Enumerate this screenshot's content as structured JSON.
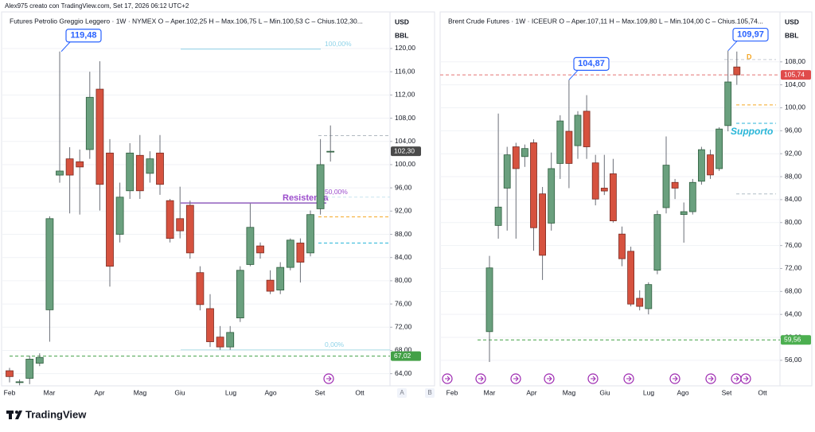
{
  "header": {
    "attribution": "Alex975 creato con TradingView.com, Set 17, 2026 06:12 UTC+2"
  },
  "footer": {
    "brand": "TradingView"
  },
  "chart_data": [
    {
      "type": "candlestick",
      "title": "Futures Petrolio Greggio Leggero · 1W · NYMEX  O – Aper.102,25  H – Max.106,75  L – Min.100,53  C – Chius.102,30...",
      "currency": "USD",
      "unit": "BBL",
      "scale_buttons": [
        "A",
        "B"
      ],
      "months": [
        "Feb",
        "Mar",
        "Apr",
        "Mag",
        "Giu",
        "Lug",
        "Ago",
        "Set",
        "Ott"
      ],
      "open": [
        64.5,
        62.5,
        63.2,
        65.8,
        75,
        98.2,
        101,
        100.5,
        102.6,
        113,
        102,
        88,
        95.5,
        101.6,
        98.5,
        102,
        93.8,
        90.7,
        93,
        81.4,
        75.2,
        70.3,
        68.6,
        73.6,
        82.8,
        86,
        80.1,
        78.4,
        82.3,
        86.5,
        84.8,
        92.4,
        102.25
      ],
      "high": [
        65,
        63,
        67.1,
        67.5,
        91.1,
        119.48,
        103,
        102.6,
        116,
        117.8,
        104.4,
        96.9,
        103.7,
        105.1,
        102.3,
        105.1,
        94.1,
        96.2,
        93.8,
        82.5,
        77.7,
        72.2,
        72.2,
        82.5,
        93.3,
        86.6,
        81.8,
        83.2,
        87.3,
        87.3,
        92.1,
        104.4,
        106.75
      ],
      "low": [
        62.5,
        62,
        62.2,
        65.3,
        69.5,
        96.9,
        91.6,
        91.4,
        101,
        92.1,
        79,
        86.6,
        94.1,
        94.1,
        96.9,
        94.8,
        86.6,
        87.3,
        83.8,
        74.9,
        68.6,
        68.1,
        68.1,
        72.9,
        82.5,
        83.8,
        77.7,
        77.7,
        81.8,
        79.7,
        84.2,
        91.4,
        100.53
      ],
      "close": [
        63.5,
        62.6,
        66.5,
        66.8,
        90.7,
        98.9,
        98.2,
        99.6,
        111.6,
        96.6,
        82.5,
        94.4,
        102,
        95.5,
        101,
        96.6,
        87.3,
        88.6,
        84.8,
        75.9,
        69.5,
        68.6,
        71.1,
        81.8,
        89.2,
        84.8,
        78.2,
        82.3,
        87,
        83.2,
        91.4,
        100,
        102.3
      ],
      "up_color": "#6aa07e",
      "down_color": "#d6523f",
      "ylim": [
        61.9,
        126.3
      ],
      "yticks": [
        {
          "value": 64,
          "label": "64,00"
        },
        {
          "value": 68,
          "label": "68,00"
        },
        {
          "value": 72,
          "label": "72,00"
        },
        {
          "value": 76,
          "label": "76,00"
        },
        {
          "value": 80,
          "label": "80,00"
        },
        {
          "value": 84,
          "label": "84,00"
        },
        {
          "value": 88,
          "label": "88,00"
        },
        {
          "value": 92,
          "label": "92,00"
        },
        {
          "value": 96,
          "label": "96,00"
        },
        {
          "value": 100,
          "label": "100,00"
        },
        {
          "value": 104,
          "label": "104,00"
        },
        {
          "value": 108,
          "label": "108,00"
        },
        {
          "value": 112,
          "label": "112,00"
        },
        {
          "value": 116,
          "label": "116,00"
        },
        {
          "value": 120,
          "label": "120,00"
        }
      ],
      "grid": true,
      "levels": [
        {
          "value": 119.9,
          "color": "#8fd3e8",
          "dash": false,
          "label": "100,00%"
        },
        {
          "value": 93.4,
          "color": "#7b3fb0",
          "dash": false
        },
        {
          "value": 94.4,
          "color": "#c8e6ef",
          "dash": true,
          "label": "50,00%"
        },
        {
          "value": 91,
          "color": "#f5a623",
          "dash": true
        },
        {
          "value": 86.5,
          "color": "#29b6d8",
          "dash": true
        },
        {
          "value": 68.1,
          "color": "#b2dfe8",
          "dash": false,
          "label": "0,00%"
        },
        {
          "value": 67.02,
          "color": "#43a047",
          "dash": true
        },
        {
          "value": 105,
          "color": "#b0b8c0",
          "dash": true
        }
      ],
      "badges": [
        {
          "value": 102.3,
          "label": "102,30",
          "color": "#4a4a4a"
        },
        {
          "value": 67.02,
          "label": "67,02",
          "color": "#43a047"
        }
      ],
      "callouts": [
        {
          "value": 119.48,
          "label": "119,48"
        }
      ],
      "notes": [
        {
          "value": 94.2,
          "text": "Resistenza",
          "color": "#9c4dcc"
        }
      ]
    },
    {
      "type": "candlestick",
      "title": "Brent Crude Futures · 1W · ICEEUR  O – Aper.107,11  H – Max.109,80  L – Min.104,00  C – Chius.105,74...",
      "currency": "USD",
      "unit": "BBL",
      "months": [
        "Feb",
        "Mar",
        "Apr",
        "Mag",
        "Giu",
        "Lug",
        "Ago",
        "Set",
        "Ott"
      ],
      "open": [
        61,
        79.5,
        86,
        93.2,
        91.5,
        93.9,
        85,
        79.9,
        90.3,
        95.9,
        93.4,
        99.4,
        90.4,
        86,
        88.5,
        78,
        75,
        66.8,
        65,
        71.7,
        82.6,
        87,
        81.4,
        81.9,
        87.2,
        91.8,
        89.4,
        96.9,
        107.11
      ],
      "high": [
        74.2,
        99,
        93.2,
        93.9,
        93.6,
        94.5,
        86.2,
        92.2,
        98.7,
        104.87,
        99.4,
        102.2,
        91.8,
        91.8,
        91.1,
        79.3,
        75.8,
        68.2,
        69.6,
        82.1,
        95,
        87.6,
        83.5,
        87.6,
        93.2,
        92.7,
        96.6,
        109.97,
        109.8
      ],
      "low": [
        55.7,
        77.2,
        78.6,
        77.2,
        89.7,
        75.1,
        70,
        78.6,
        87.6,
        86,
        91.1,
        91.1,
        83,
        84.8,
        80,
        72.4,
        65.4,
        64.7,
        64,
        71,
        81.6,
        84.1,
        76.5,
        81.4,
        86.6,
        87.6,
        89,
        95.9,
        104
      ],
      "close": [
        72.1,
        82.7,
        91.8,
        89.4,
        92.9,
        79.1,
        74.3,
        89.4,
        97.7,
        90.3,
        98.7,
        93.2,
        84.1,
        85.5,
        80.3,
        73.7,
        65.8,
        65.4,
        69.2,
        81.4,
        90,
        86,
        81.9,
        87,
        92.7,
        88.3,
        96.3,
        104.5,
        105.74
      ],
      "up_color": "#6aa07e",
      "down_color": "#d6523f",
      "ylim": [
        51.55,
        116.7
      ],
      "yticks": [
        {
          "value": 56,
          "label": "56,00"
        },
        {
          "value": 60,
          "label": "60,00"
        },
        {
          "value": 64,
          "label": "64,00"
        },
        {
          "value": 68,
          "label": "68,00"
        },
        {
          "value": 72,
          "label": "72,00"
        },
        {
          "value": 76,
          "label": "76,00"
        },
        {
          "value": 80,
          "label": "80,00"
        },
        {
          "value": 84,
          "label": "84,00"
        },
        {
          "value": 88,
          "label": "88,00"
        },
        {
          "value": 92,
          "label": "92,00"
        },
        {
          "value": 96,
          "label": "96,00"
        },
        {
          "value": 100,
          "label": "100,00"
        },
        {
          "value": 104,
          "label": "104,00"
        },
        {
          "value": 108,
          "label": "108,00"
        }
      ],
      "grid": true,
      "levels": [
        {
          "value": 108.4,
          "color": "#c8ccd4",
          "dash": true
        },
        {
          "value": 105.74,
          "color": "#e57373",
          "dash": true
        },
        {
          "value": 100.5,
          "color": "#f5a623",
          "dash": true
        },
        {
          "value": 97.3,
          "color": "#29b6d8",
          "dash": true
        },
        {
          "value": 85,
          "color": "#b0bec5",
          "dash": true
        },
        {
          "value": 59.56,
          "color": "#43a047",
          "dash": true
        }
      ],
      "badges": [
        {
          "value": 105.74,
          "label": "105,74",
          "color": "#e04b4b"
        },
        {
          "value": 59.56,
          "label": "59,56",
          "color": "#4caf50"
        }
      ],
      "callouts": [
        {
          "value": 104.87,
          "label": "104,87"
        },
        {
          "value": 109.97,
          "label": "109,97"
        }
      ],
      "notes": [
        {
          "value": 95.8,
          "text": "Supporto",
          "color": "#29b6d8"
        },
        {
          "value": 108.8,
          "text": "D",
          "color": "#f5a623"
        }
      ]
    }
  ]
}
